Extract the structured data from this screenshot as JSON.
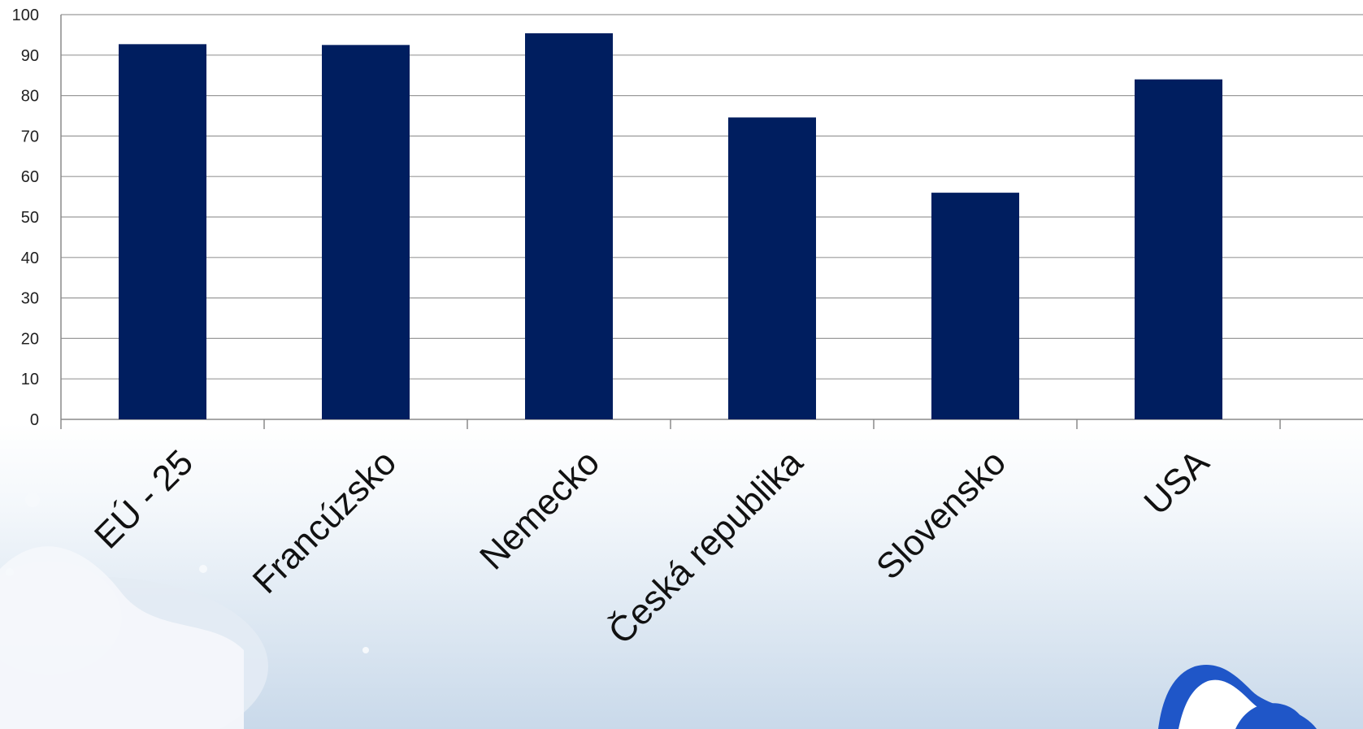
{
  "chart_data": {
    "type": "bar",
    "title": "",
    "xlabel": "",
    "ylabel": "",
    "categories": [
      "EÚ - 25",
      "Francúzsko",
      "Nemecko",
      "Česká republika",
      "Slovensko",
      "USA"
    ],
    "series": [
      {
        "values": [
          92.7,
          92.5,
          95.4,
          74.6,
          56.0,
          84.0
        ]
      }
    ],
    "ylim": [
      0,
      100
    ],
    "y_ticks": [
      "0",
      "10",
      "20",
      "30",
      "40",
      "50",
      "60",
      "70",
      "80",
      "90",
      "100"
    ],
    "grid": true,
    "legend": "none",
    "colors": {
      "bar": "#001e5f",
      "grid": "#9a9a9a",
      "axis": "#8a8a8a",
      "splash": "#c7d6e6",
      "logo_blue": "#1f56c8"
    }
  }
}
